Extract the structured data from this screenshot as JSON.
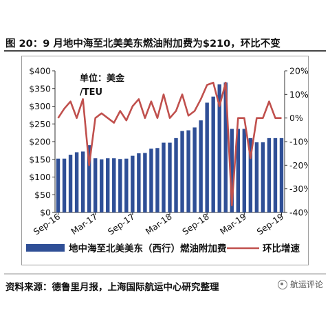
{
  "figure": {
    "title": "图 20：9 月地中海至北美美东燃油附加费为$210，环比不变",
    "source": "资料来源：德鲁里月报，上海国际航运中心研究整理",
    "watermark": "航运评论",
    "watermark_icon": "wechat-icon"
  },
  "chart_data": {
    "type": "bar",
    "annotation": "单位：美金\n/TEU",
    "categories": [
      "Sep-16",
      "Oct-16",
      "Nov-16",
      "Dec-16",
      "Jan-17",
      "Feb-17",
      "Mar-17",
      "Apr-17",
      "May-17",
      "Jun-17",
      "Jul-17",
      "Aug-17",
      "Sep-17",
      "Oct-17",
      "Nov-17",
      "Dec-17",
      "Jan-18",
      "Feb-18",
      "Mar-18",
      "Apr-18",
      "May-18",
      "Jun-18",
      "Jul-18",
      "Aug-18",
      "Sep-18",
      "Oct-18",
      "Nov-18",
      "Dec-18",
      "Jan-19",
      "Feb-19",
      "Mar-19",
      "Apr-19",
      "May-19",
      "Jun-19",
      "Jul-19",
      "Aug-19",
      "Sep-19"
    ],
    "x_tick_labels": [
      "Sep-16",
      "Mar-17",
      "Sep-17",
      "Mar-18",
      "Sep-18",
      "Mar-19",
      "Sep-19"
    ],
    "series": [
      {
        "name": "地中海至北美美东（西行）燃油附加费",
        "type": "bar",
        "axis": "left",
        "color": "#2f4f96",
        "values": [
          152,
          152,
          163,
          170,
          172,
          190,
          153,
          150,
          153,
          153,
          151,
          152,
          160,
          167,
          168,
          180,
          182,
          197,
          197,
          210,
          230,
          232,
          240,
          260,
          310,
          327,
          362,
          367,
          236,
          236,
          236,
          210,
          198,
          198,
          210,
          210,
          210
        ]
      },
      {
        "name": "环比增速",
        "type": "line",
        "axis": "right",
        "unit": "%",
        "color": "#c0504d",
        "values": [
          0,
          4,
          7,
          0,
          8,
          -20,
          0,
          2,
          0,
          -2,
          3,
          -1,
          5,
          8,
          0,
          7,
          0,
          10,
          0,
          3,
          10,
          1,
          3,
          8,
          14,
          15,
          5,
          15,
          -37,
          0,
          0,
          -17,
          0,
          0,
          7,
          0,
          0
        ]
      }
    ],
    "y_left": {
      "min": 0,
      "max": 400,
      "step": 50,
      "prefix": "$"
    },
    "y_right": {
      "min": -40,
      "max": 20,
      "step": 10,
      "suffix": "%"
    },
    "legend_position": "bottom",
    "grid": false
  }
}
